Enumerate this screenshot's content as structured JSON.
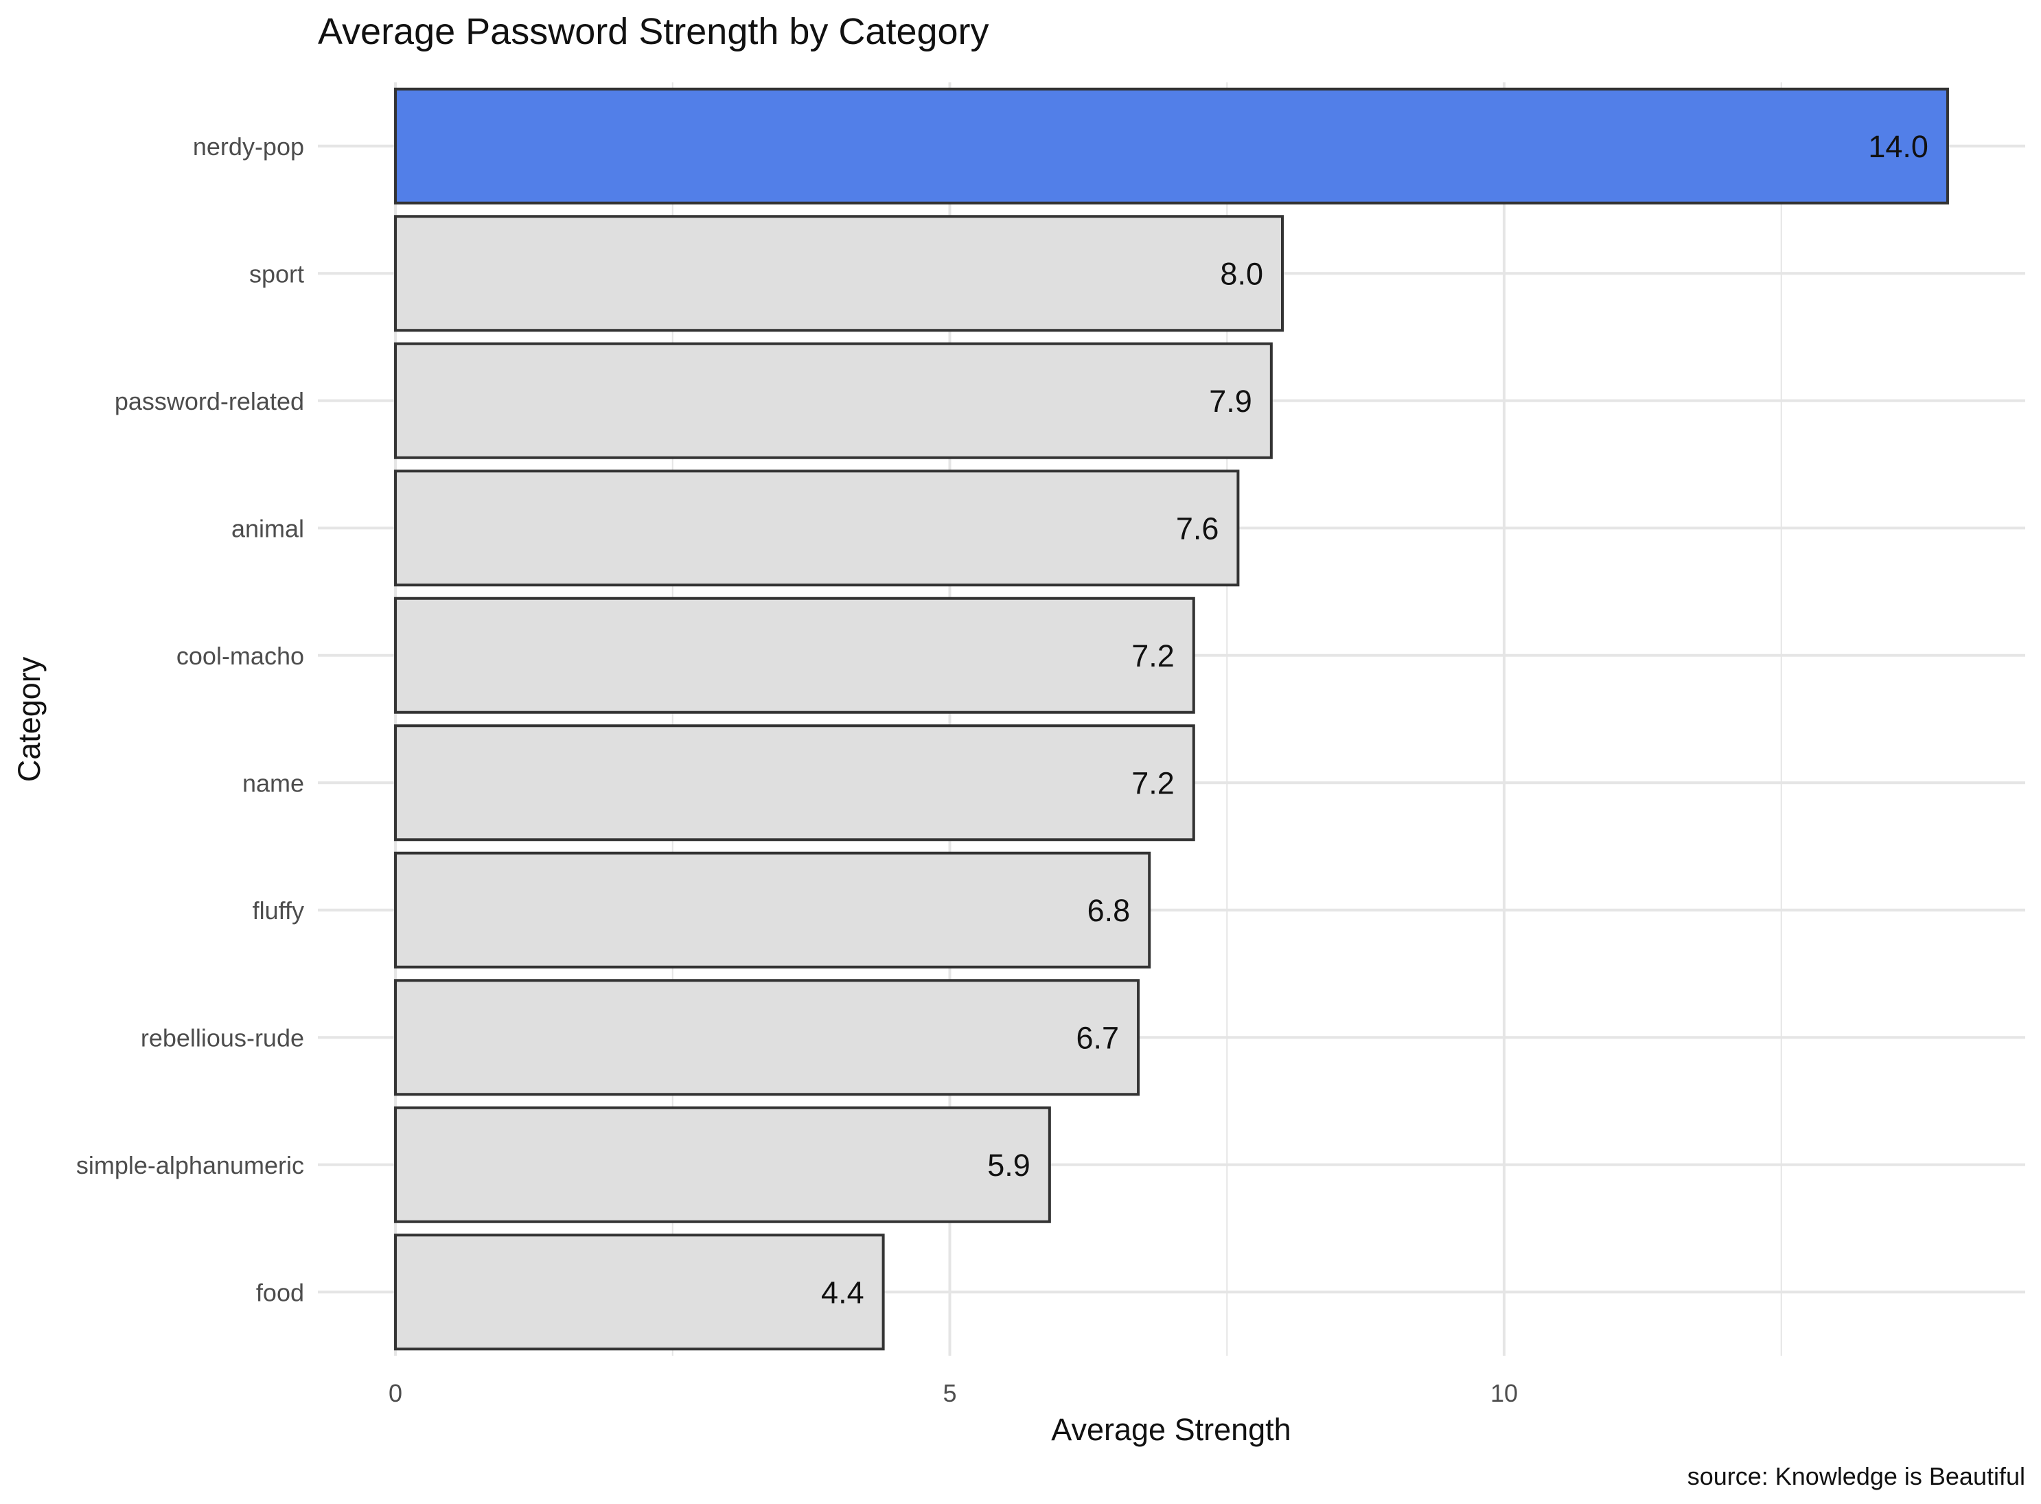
{
  "chart_data": {
    "type": "bar",
    "orientation": "horizontal",
    "title": "Average Password Strength by Category",
    "xlabel": "Average Strength",
    "ylabel": "Category",
    "caption": "source: Knowledge is Beautiful",
    "categories": [
      "nerdy-pop",
      "sport",
      "password-related",
      "animal",
      "cool-macho",
      "name",
      "fluffy",
      "rebellious-rude",
      "simple-alphanumeric",
      "food"
    ],
    "values": [
      14.0,
      8.0,
      7.9,
      7.6,
      7.2,
      7.2,
      6.8,
      6.7,
      5.9,
      4.4
    ],
    "value_labels": [
      "14.0",
      "8.0",
      "7.9",
      "7.6",
      "7.2",
      "7.2",
      "6.8",
      "6.7",
      "5.9",
      "4.4"
    ],
    "highlight": "nerdy-pop",
    "x_ticks": [
      0,
      5,
      10
    ],
    "x_tick_labels": [
      "0",
      "5",
      "10"
    ],
    "xlim": [
      -0.7,
      14.7
    ],
    "grid": true,
    "legend": "none",
    "colors": {
      "highlight": "#527FE8",
      "default": "#DFDFDF",
      "bar_outline": "#333333",
      "grid": "#E5E5E5",
      "background": "#FFFFFF"
    }
  }
}
